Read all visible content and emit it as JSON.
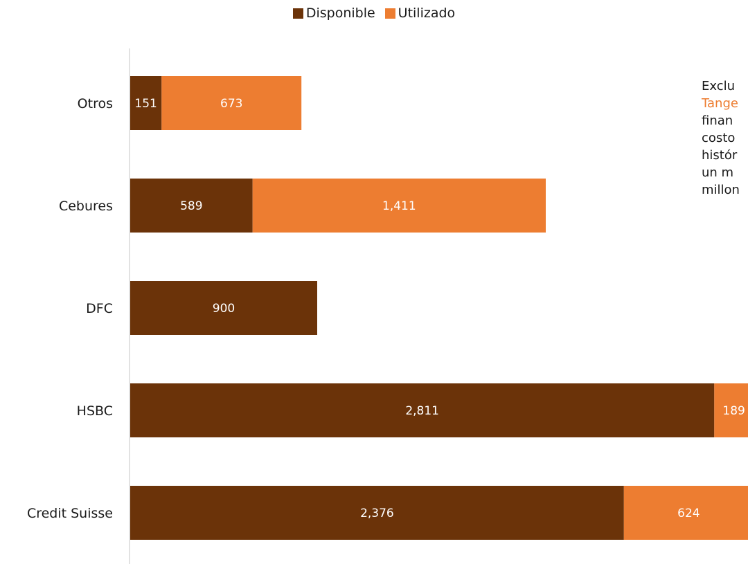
{
  "chart_data": {
    "type": "bar",
    "orientation": "horizontal",
    "stacked": true,
    "categories": [
      "Otros",
      "Cebures",
      "DFC",
      "HSBC",
      "Credit Suisse"
    ],
    "series": [
      {
        "name": "Disponible",
        "values": [
          151,
          589,
          900,
          2811,
          2376
        ],
        "color": "#6b3309"
      },
      {
        "name": "Utilizado",
        "values": [
          673,
          1411,
          0,
          189,
          624
        ],
        "color": "#ed7d31"
      }
    ],
    "value_labels": [
      [
        "151",
        "589",
        "900",
        "2,811",
        "2,376"
      ],
      [
        "673",
        "1,411",
        "",
        "189",
        "624"
      ]
    ],
    "legend_position": "top-center",
    "grid": false
  },
  "annotation": {
    "line1": "Exclu",
    "line2_accent": "Tange",
    "line3": "finan",
    "line4": "costo",
    "line5": "histór",
    "line6": "un m",
    "line7": "millon"
  }
}
